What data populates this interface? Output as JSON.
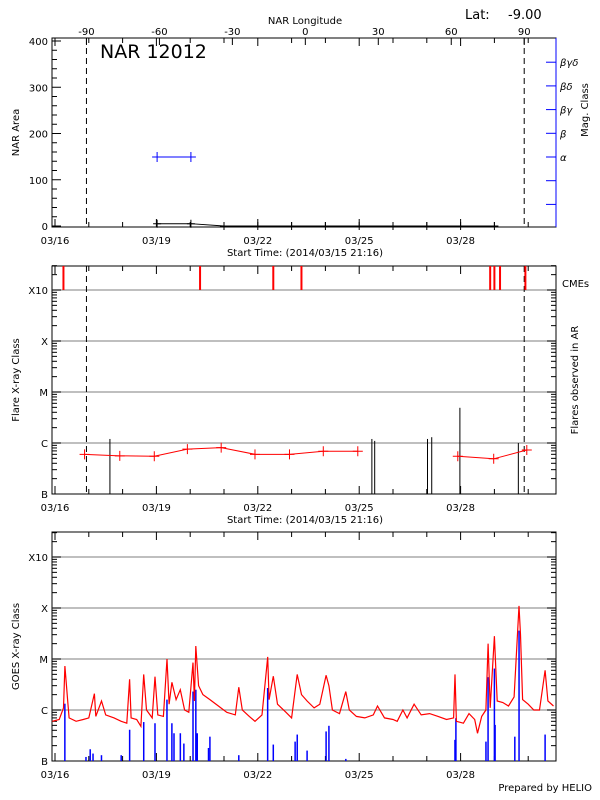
{
  "header": {
    "lat_label": "Lat:",
    "lat_value": "-9.00",
    "footer": "Prepared by HELIO"
  },
  "colors": {
    "axis": "#000000",
    "grid": "#999999",
    "red": "#ff0000",
    "blue": "#0000ff"
  },
  "chart_data": [
    {
      "type": "line",
      "title": "NAR 12012",
      "xlabel": "Start Time: (2014/03/15 21:16)",
      "ylabel": "NAR Area",
      "xlim": [
        "2014-03-15T21:16",
        "2014-03-30T19:30"
      ],
      "xticks": [
        "03/16",
        "03/19",
        "03/22",
        "03/25",
        "03/28"
      ],
      "ylim": [
        0,
        400
      ],
      "yticks": [
        0,
        100,
        200,
        300,
        400
      ],
      "x2label": "NAR Longitude",
      "x2lim": [
        -90,
        90
      ],
      "x2ticks": [
        -90,
        -60,
        -30,
        0,
        30,
        60,
        90
      ],
      "limb_lines": {
        "lon_minus_90": "2014-03-16T22:20",
        "lon_plus_90": "2014-03-29T21:10"
      },
      "y2label": "Mag. Class",
      "y2ticks": [
        "α",
        "β",
        "βγ",
        "βδ",
        "βγδ"
      ],
      "grid": false,
      "series": [
        {
          "kind": "area",
          "color": "#000000",
          "x": [
            "2014-03-19T00:30",
            "2014-03-20T00:30",
            "2014-03-21T00:00",
            "2014-03-22T00:00",
            "2014-03-23T00:00",
            "2014-03-24T00:00",
            "2014-03-25T00:00",
            "2014-03-26T00:00",
            "2014-03-27T00:00",
            "2014-03-28T00:00",
            "2014-03-29T00:00"
          ],
          "y": [
            5,
            5,
            0,
            0,
            0,
            0,
            0,
            0,
            0,
            0,
            0
          ]
        },
        {
          "kind": "mag_class",
          "color": "#0000ff",
          "x": [
            "2014-03-19T00:30",
            "2014-03-20T00:30"
          ],
          "y": [
            "α",
            "α"
          ]
        }
      ]
    },
    {
      "type": "line",
      "xlabel": "Start Time: (2014/03/15 21:16)",
      "ylabel": "Flare X-ray Class",
      "y2label": "Flares observed in AR",
      "cme_label": "CMEs",
      "xlim": [
        "2014-03-15T21:16",
        "2014-03-30T19:30"
      ],
      "xticks": [
        "03/16",
        "03/19",
        "03/22",
        "03/25",
        "03/28"
      ],
      "yscale": "log",
      "ylim": [
        1e-07,
        0.003
      ],
      "yticks": [
        {
          "label": "B",
          "value": 1e-07
        },
        {
          "label": "C",
          "value": 1e-06
        },
        {
          "label": "M",
          "value": 1e-05
        },
        {
          "label": "X",
          "value": 0.0001
        },
        {
          "label": "X10",
          "value": 0.001
        }
      ],
      "grid": true,
      "limb_lines": {
        "lon_minus_90": "2014-03-16T22:20",
        "lon_plus_90": "2014-03-29T21:10"
      },
      "cmes": [
        "2014-03-16T06:00",
        "2014-03-20T07:00",
        "2014-03-22T11:00",
        "2014-03-23T07:00",
        "2014-03-28T21:00",
        "2014-03-29T00:00",
        "2014-03-29T04:00",
        "2014-03-29T22:00"
      ],
      "flares": [
        {
          "x": "2014-03-17T15:00",
          "y": 1.2e-06
        },
        {
          "x": "2014-03-25T09:00",
          "y": 1.2e-06
        },
        {
          "x": "2014-03-25T11:00",
          "y": 1.1e-06
        },
        {
          "x": "2014-03-27T00:30",
          "y": 1.2e-06
        },
        {
          "x": "2014-03-27T03:30",
          "y": 1.3e-06
        },
        {
          "x": "2014-03-27T23:30",
          "y": 4.9e-06
        },
        {
          "x": "2014-03-29T17:00",
          "y": 1e-06
        }
      ],
      "background_segments": [
        {
          "x": [
            "2014-03-16T21:00",
            "2014-03-17T22:00",
            "2014-03-18T22:30",
            "2014-03-19T22:00",
            "2014-03-20T22:00",
            "2014-03-21T22:00",
            "2014-03-22T22:30",
            "2014-03-23T22:30",
            "2014-03-24T23:00"
          ],
          "y": [
            6e-07,
            5.6e-07,
            5.5e-07,
            7.6e-07,
            8.1e-07,
            6e-07,
            6e-07,
            6.9e-07,
            6.9e-07
          ]
        },
        {
          "x": [
            "2014-03-27T22:00",
            "2014-03-28T23:30",
            "2014-03-29T23:00"
          ],
          "y": [
            5.5e-07,
            4.9e-07,
            7.3e-07
          ]
        }
      ]
    },
    {
      "type": "line",
      "ylabel": "GOES X-ray Class",
      "xlim": [
        "2014-03-15T21:16",
        "2014-03-30T19:30"
      ],
      "xticks": [
        "03/16",
        "03/19",
        "03/22",
        "03/25",
        "03/28"
      ],
      "yscale": "log",
      "ylim": [
        1e-07,
        0.003
      ],
      "yticks": [
        {
          "label": "B",
          "value": 1e-07
        },
        {
          "label": "C",
          "value": 1e-06
        },
        {
          "label": "M",
          "value": 1e-05
        },
        {
          "label": "X",
          "value": 0.0001
        },
        {
          "label": "X10",
          "value": 0.001
        }
      ],
      "grid": true,
      "series": [
        {
          "kind": "flux",
          "color": "#ff0000",
          "points": [
            [
              "2014-03-15T22:00",
              6e-07
            ],
            [
              "2014-03-16T03:00",
              6.5e-07
            ],
            [
              "2014-03-16T06:00",
              1.1e-06
            ],
            [
              "2014-03-16T07:00",
              7.3e-06
            ],
            [
              "2014-03-16T09:00",
              1.5e-06
            ],
            [
              "2014-03-16T10:00",
              7e-07
            ],
            [
              "2014-03-16T15:00",
              6e-07
            ],
            [
              "2014-03-16T20:00",
              6.5e-07
            ],
            [
              "2014-03-17T00:00",
              7e-07
            ],
            [
              "2014-03-17T04:00",
              2.1e-06
            ],
            [
              "2014-03-17T05:00",
              7.5e-07
            ],
            [
              "2014-03-17T09:00",
              1.5e-06
            ],
            [
              "2014-03-17T12:00",
              8e-07
            ],
            [
              "2014-03-17T18:00",
              7e-07
            ],
            [
              "2014-03-17T23:00",
              6e-07
            ],
            [
              "2014-03-18T03:00",
              5.5e-07
            ],
            [
              "2014-03-18T05:00",
              4e-06
            ],
            [
              "2014-03-18T06:00",
              7e-07
            ],
            [
              "2014-03-18T10:00",
              6.5e-07
            ],
            [
              "2014-03-18T13:00",
              4.8e-07
            ],
            [
              "2014-03-18T15:00",
              5e-06
            ],
            [
              "2014-03-18T17:00",
              1e-06
            ],
            [
              "2014-03-18T21:00",
              7e-07
            ],
            [
              "2014-03-18T23:00",
              4.5e-06
            ],
            [
              "2014-03-19T01:00",
              8e-07
            ],
            [
              "2014-03-19T05:00",
              7.5e-07
            ],
            [
              "2014-03-19T07:30",
              1e-05
            ],
            [
              "2014-03-19T09:00",
              1.3e-06
            ],
            [
              "2014-03-19T11:00",
              3.5e-06
            ],
            [
              "2014-03-19T14:00",
              1.6e-06
            ],
            [
              "2014-03-19T17:00",
              2.5e-06
            ],
            [
              "2014-03-19T20:00",
              1e-06
            ],
            [
              "2014-03-19T23:00",
              9e-07
            ],
            [
              "2014-03-20T02:00",
              8.5e-06
            ],
            [
              "2014-03-20T03:00",
              1.5e-06
            ],
            [
              "2014-03-20T04:00",
              1.8e-05
            ],
            [
              "2014-03-20T06:00",
              3e-06
            ],
            [
              "2014-03-20T09:00",
              2e-06
            ],
            [
              "2014-03-20T14:00",
              1.6e-06
            ],
            [
              "2014-03-20T20:00",
              1.2e-06
            ],
            [
              "2014-03-21T02:00",
              9e-07
            ],
            [
              "2014-03-21T08:00",
              8e-07
            ],
            [
              "2014-03-21T10:30",
              2.8e-06
            ],
            [
              "2014-03-21T13:00",
              1e-06
            ],
            [
              "2014-03-21T18:00",
              7.5e-07
            ],
            [
              "2014-03-21T22:00",
              6e-07
            ],
            [
              "2014-03-22T03:00",
              8e-07
            ],
            [
              "2014-03-22T07:00",
              1.1e-05
            ],
            [
              "2014-03-22T08:00",
              1.6e-06
            ],
            [
              "2014-03-22T11:00",
              4.6e-06
            ],
            [
              "2014-03-22T14:00",
              1.3e-06
            ],
            [
              "2014-03-22T20:00",
              9e-07
            ],
            [
              "2014-03-23T00:00",
              7e-07
            ],
            [
              "2014-03-23T04:00",
              5e-06
            ],
            [
              "2014-03-23T07:00",
              2e-06
            ],
            [
              "2014-03-23T11:00",
              1.5e-06
            ],
            [
              "2014-03-23T16:00",
              1.1e-06
            ],
            [
              "2014-03-23T20:00",
              1.3e-06
            ],
            [
              "2014-03-24T00:30",
              4.8e-06
            ],
            [
              "2014-03-24T02:30",
              3e-06
            ],
            [
              "2014-03-24T05:00",
              1e-06
            ],
            [
              "2014-03-24T10:00",
              8.5e-07
            ],
            [
              "2014-03-24T14:30",
              2.3e-06
            ],
            [
              "2014-03-24T17:00",
              1e-06
            ],
            [
              "2014-03-24T22:00",
              7.5e-07
            ],
            [
              "2014-03-25T04:00",
              7e-07
            ],
            [
              "2014-03-25T10:00",
              8e-07
            ],
            [
              "2014-03-25T13:00",
              1.2e-06
            ],
            [
              "2014-03-25T18:00",
              7e-07
            ],
            [
              "2014-03-26T00:00",
              6.5e-07
            ],
            [
              "2014-03-26T03:00",
              6e-07
            ],
            [
              "2014-03-26T07:00",
              1e-06
            ],
            [
              "2014-03-26T10:00",
              7e-07
            ],
            [
              "2014-03-26T15:00",
              1.3e-06
            ],
            [
              "2014-03-26T20:00",
              8e-07
            ],
            [
              "2014-03-27T02:00",
              8.5e-07
            ],
            [
              "2014-03-27T08:00",
              7.5e-07
            ],
            [
              "2014-03-27T14:00",
              6.5e-07
            ],
            [
              "2014-03-27T19:00",
              7e-07
            ],
            [
              "2014-03-27T20:00",
              5e-06
            ],
            [
              "2014-03-27T21:00",
              6e-07
            ],
            [
              "2014-03-28T02:00",
              5.5e-07
            ],
            [
              "2014-03-28T06:00",
              8.5e-07
            ],
            [
              "2014-03-28T10:00",
              6.5e-07
            ],
            [
              "2014-03-28T12:00",
              3.5e-07
            ],
            [
              "2014-03-28T15:00",
              7.5e-07
            ],
            [
              "2014-03-28T18:00",
              1e-06
            ],
            [
              "2014-03-28T19:30",
              2e-05
            ],
            [
              "2014-03-28T21:00",
              1.1e-06
            ],
            [
              "2014-03-29T00:00",
              2.8e-05
            ],
            [
              "2014-03-29T02:00",
              1.5e-06
            ],
            [
              "2014-03-29T06:00",
              1.4e-06
            ],
            [
              "2014-03-29T10:00",
              1.2e-06
            ],
            [
              "2014-03-29T14:00",
              1.8e-06
            ],
            [
              "2014-03-29T17:30",
              0.00011
            ],
            [
              "2014-03-29T18:30",
              3e-05
            ],
            [
              "2014-03-29T20:00",
              1.6e-06
            ],
            [
              "2014-03-30T00:00",
              1.3e-06
            ],
            [
              "2014-03-30T04:00",
              1e-06
            ],
            [
              "2014-03-30T08:00",
              1e-06
            ],
            [
              "2014-03-30T12:00",
              6e-06
            ],
            [
              "2014-03-30T14:00",
              1.5e-06
            ],
            [
              "2014-03-30T18:00",
              1.2e-06
            ]
          ]
        },
        {
          "kind": "events",
          "color": "#0000ff",
          "points": [
            [
              "2014-03-16T07:00",
              1.33e-06
            ],
            [
              "2014-03-16T22:00",
              1.2e-07
            ],
            [
              "2014-03-17T01:00",
              1.7e-07
            ],
            [
              "2014-03-17T03:00",
              1.4e-07
            ],
            [
              "2014-03-17T09:00",
              1.3e-07
            ],
            [
              "2014-03-17T23:00",
              1.3e-07
            ],
            [
              "2014-03-18T05:00",
              4.1e-07
            ],
            [
              "2014-03-18T15:00",
              5.8e-07
            ],
            [
              "2014-03-18T23:00",
              5.5e-07
            ],
            [
              "2014-03-19T07:30",
              1.6e-06
            ],
            [
              "2014-03-19T11:00",
              5.5e-07
            ],
            [
              "2014-03-19T12:30",
              3.5e-07
            ],
            [
              "2014-03-19T17:00",
              3.5e-07
            ],
            [
              "2014-03-19T19:30",
              2.2e-07
            ],
            [
              "2014-03-20T02:00",
              2.3e-06
            ],
            [
              "2014-03-20T04:00",
              2.5e-06
            ],
            [
              "2014-03-20T05:00",
              3.5e-07
            ],
            [
              "2014-03-20T13:00",
              1.8e-07
            ],
            [
              "2014-03-20T14:00",
              3e-07
            ],
            [
              "2014-03-21T10:30",
              1.3e-07
            ],
            [
              "2014-03-22T07:00",
              2.7e-06
            ],
            [
              "2014-03-22T11:00",
              2.1e-07
            ],
            [
              "2014-03-23T02:30",
              2.4e-07
            ],
            [
              "2014-03-23T04:00",
              3.3e-07
            ],
            [
              "2014-03-23T11:00",
              1.6e-07
            ],
            [
              "2014-03-24T00:30",
              3.8e-07
            ],
            [
              "2014-03-24T02:30",
              4.9e-07
            ],
            [
              "2014-03-24T14:30",
              1.1e-07
            ],
            [
              "2014-03-27T20:00",
              2.6e-07
            ],
            [
              "2014-03-27T20:40",
              6.9e-07
            ],
            [
              "2014-03-28T18:00",
              2.4e-07
            ],
            [
              "2014-03-28T19:30",
              4.4e-06
            ],
            [
              "2014-03-29T00:00",
              6.5e-06
            ],
            [
              "2014-03-29T00:30",
              5.1e-07
            ],
            [
              "2014-03-29T14:30",
              3e-07
            ],
            [
              "2014-03-29T17:30",
              3.6e-05
            ],
            [
              "2014-03-30T12:00",
              3.3e-07
            ]
          ]
        }
      ]
    }
  ]
}
